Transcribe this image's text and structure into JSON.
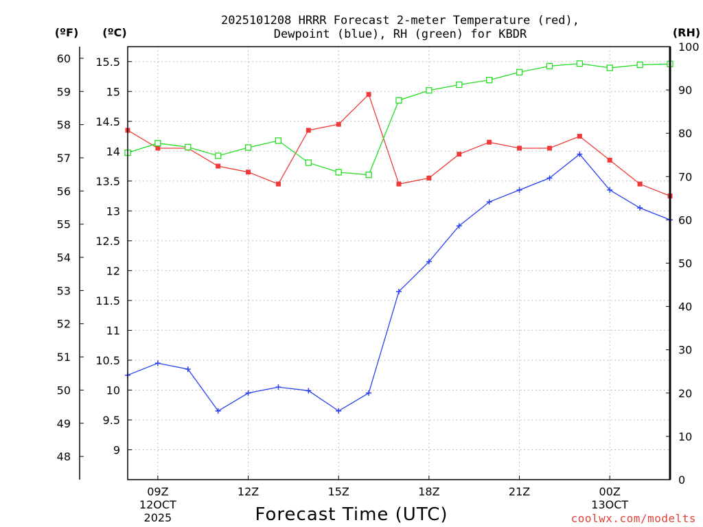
{
  "header": {
    "title_line1": "2025101208 HRRR Forecast 2-meter Temperature (red),",
    "title_line2": "Dewpoint (blue), RH (green) for KBDR"
  },
  "units": {
    "fahrenheit": "(ºF)",
    "celsius": "(ºC)",
    "rh": "(RH)"
  },
  "xlabel": "Forecast Time (UTC)",
  "credit": "coolwx.com/modelts",
  "colors": {
    "temperature": "#f03a3a",
    "dewpoint": "#2a3ff0",
    "rh": "#22dd22",
    "grid": "#aaaaaa"
  },
  "chart_data": {
    "type": "line",
    "x_hours_utc": [
      "08Z",
      "09Z",
      "10Z",
      "11Z",
      "12Z",
      "13Z",
      "14Z",
      "15Z",
      "16Z",
      "17Z",
      "18Z",
      "19Z",
      "20Z",
      "21Z",
      "22Z",
      "23Z",
      "00Z",
      "01Z",
      "02Z"
    ],
    "x_ticks": [
      {
        "label": "09Z",
        "date1": "12OCT",
        "date2": "2025"
      },
      {
        "label": "12Z",
        "date1": "",
        "date2": ""
      },
      {
        "label": "15Z",
        "date1": "",
        "date2": ""
      },
      {
        "label": "18Z",
        "date1": "",
        "date2": ""
      },
      {
        "label": "21Z",
        "date1": "",
        "date2": ""
      },
      {
        "label": "00Z",
        "date1": "13OCT",
        "date2": ""
      }
    ],
    "y_celsius": {
      "range": [
        8.5,
        15.75
      ],
      "ticks": [
        "9",
        "9.5",
        "10",
        "10.5",
        "11",
        "11.5",
        "12",
        "12.5",
        "13",
        "13.5",
        "14",
        "14.5",
        "15",
        "15.5"
      ]
    },
    "y_fahrenheit": {
      "ticks": [
        "48",
        "49",
        "50",
        "51",
        "52",
        "53",
        "54",
        "55",
        "56",
        "57",
        "58",
        "59",
        "60"
      ]
    },
    "y_rh": {
      "range": [
        0,
        100
      ],
      "ticks": [
        "0",
        "10",
        "20",
        "30",
        "40",
        "50",
        "60",
        "70",
        "80",
        "90",
        "100"
      ]
    },
    "series": [
      {
        "name": "Temperature",
        "axis": "celsius",
        "marker": "filled-square",
        "values": [
          14.35,
          14.05,
          14.05,
          13.75,
          13.65,
          13.45,
          14.35,
          14.45,
          14.95,
          13.45,
          13.55,
          13.95,
          14.15,
          14.05,
          14.05,
          14.25,
          13.85,
          13.45,
          13.25
        ]
      },
      {
        "name": "Dewpoint",
        "axis": "celsius",
        "marker": "plus",
        "values": [
          10.25,
          10.45,
          10.35,
          9.65,
          9.95,
          10.05,
          9.99,
          9.65,
          9.95,
          11.65,
          12.15,
          12.75,
          13.15,
          13.35,
          13.55,
          13.95,
          13.35,
          13.05,
          12.85
        ]
      },
      {
        "name": "RH",
        "axis": "rh",
        "marker": "open-square",
        "values": [
          75.5,
          77.7,
          76.8,
          74.8,
          76.7,
          78.3,
          73.2,
          71,
          70.4,
          87.6,
          89.9,
          91.2,
          92.3,
          94.1,
          95.5,
          96.1,
          95.1,
          95.8,
          96
        ]
      }
    ]
  }
}
